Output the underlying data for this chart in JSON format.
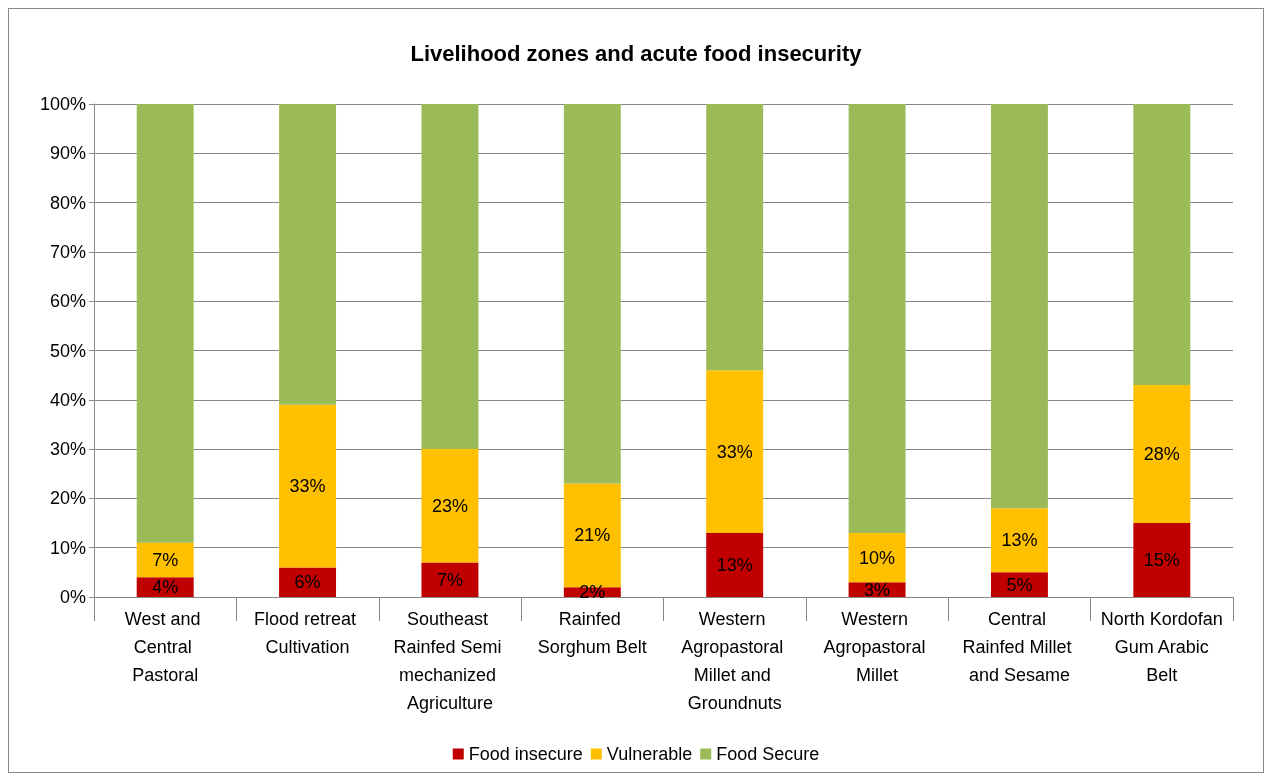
{
  "chart_data": {
    "type": "bar",
    "title": "Livelihood zones and acute food insecurity",
    "stacked": true,
    "categories": [
      "West and Central Pastoral",
      "Flood retreat Cultivation",
      "Southeast Rainfed Semi mechanized Agriculture",
      "Rainfed Sorghum Belt",
      "Western Agropastoral Millet and Groundnuts",
      "Western Agropastoral Millet",
      "Central Rainfed Millet and Sesame",
      "North Kordofan Gum Arabic Belt"
    ],
    "series": [
      {
        "name": "Food insecure",
        "color": "#c00000",
        "values": [
          4,
          6,
          7,
          2,
          13,
          3,
          5,
          15
        ],
        "value_labels": [
          "4%",
          "6%",
          "7%",
          "2%",
          "13%",
          "3%",
          "5%",
          "15%"
        ]
      },
      {
        "name": "Vulnerable",
        "color": "#ffc000",
        "values": [
          7,
          33,
          23,
          21,
          33,
          10,
          13,
          28
        ],
        "value_labels": [
          "7%",
          "33%",
          "23%",
          "21%",
          "33%",
          "10%",
          "13%",
          "28%"
        ]
      },
      {
        "name": "Food Secure",
        "color": "#9bbb59",
        "values": [
          89,
          61,
          70,
          77,
          54,
          87,
          82,
          57
        ]
      }
    ],
    "ylim": [
      0,
      100
    ],
    "yticks": [
      {
        "value": 0,
        "label": "0%"
      },
      {
        "value": 10,
        "label": "10%"
      },
      {
        "value": 20,
        "label": "20%"
      },
      {
        "value": 30,
        "label": "30%"
      },
      {
        "value": 40,
        "label": "40%"
      },
      {
        "value": 50,
        "label": "50%"
      },
      {
        "value": 60,
        "label": "60%"
      },
      {
        "value": 70,
        "label": "70%"
      },
      {
        "value": 80,
        "label": "80%"
      },
      {
        "value": 90,
        "label": "90%"
      },
      {
        "value": 100,
        "label": "100%"
      }
    ],
    "grid": "y",
    "legend": "bottom"
  }
}
